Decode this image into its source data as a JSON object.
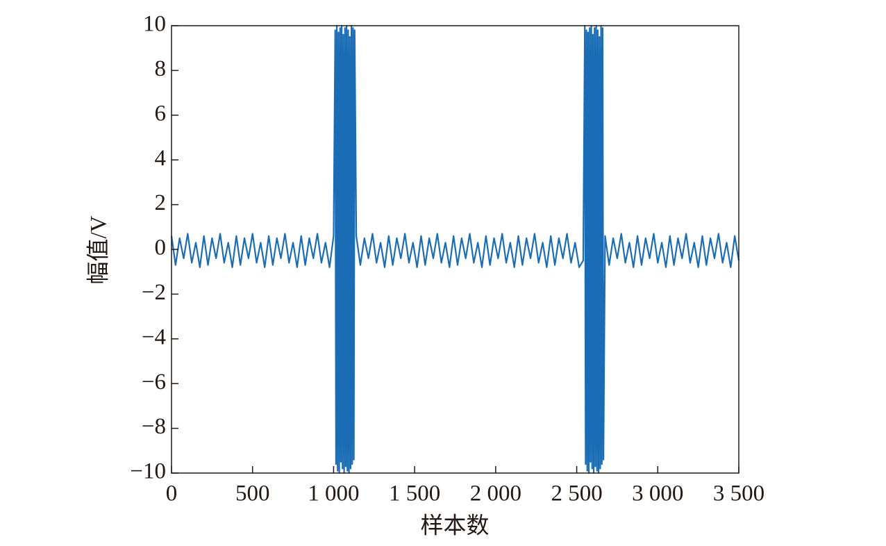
{
  "chart_data": {
    "type": "line",
    "xlabel": "样本数",
    "ylabel": "幅值/V",
    "color": "#1a6db5",
    "xlim": [
      0,
      3500
    ],
    "ylim": [
      -10,
      10
    ],
    "xticks": [
      0,
      500,
      {
        "value": 1000,
        "label": "1 000"
      },
      {
        "value": 1500,
        "label": "1 500"
      },
      {
        "value": 2000,
        "label": "2 000"
      },
      {
        "value": 2500,
        "label": "2 500"
      },
      {
        "value": 3000,
        "label": "3 000"
      },
      {
        "value": 3500,
        "label": "3 500"
      }
    ],
    "yticks": [
      {
        "value": -10,
        "label": "−10"
      },
      {
        "value": -8,
        "label": "−8"
      },
      {
        "value": -6,
        "label": "−6"
      },
      {
        "value": -4,
        "label": "−4"
      },
      {
        "value": -2,
        "label": "−2"
      },
      0,
      2,
      4,
      6,
      8,
      10
    ],
    "x": [
      0,
      25,
      50,
      75,
      100,
      125,
      150,
      175,
      200,
      225,
      250,
      275,
      300,
      325,
      350,
      375,
      400,
      425,
      450,
      475,
      500,
      525,
      550,
      575,
      600,
      625,
      650,
      675,
      700,
      725,
      750,
      775,
      800,
      825,
      850,
      875,
      900,
      925,
      950,
      975,
      1000,
      1010,
      1015,
      1020,
      1025,
      1030,
      1035,
      1040,
      1045,
      1050,
      1055,
      1060,
      1065,
      1070,
      1075,
      1080,
      1085,
      1090,
      1095,
      1100,
      1105,
      1110,
      1115,
      1120,
      1125,
      1130,
      1140,
      1165,
      1190,
      1215,
      1240,
      1265,
      1290,
      1315,
      1340,
      1365,
      1390,
      1415,
      1440,
      1465,
      1490,
      1515,
      1540,
      1565,
      1590,
      1615,
      1640,
      1665,
      1690,
      1715,
      1740,
      1765,
      1790,
      1815,
      1840,
      1865,
      1890,
      1915,
      1940,
      1965,
      1990,
      2015,
      2040,
      2065,
      2090,
      2115,
      2140,
      2165,
      2190,
      2215,
      2240,
      2265,
      2290,
      2315,
      2340,
      2365,
      2390,
      2415,
      2440,
      2465,
      2490,
      2515,
      2540,
      2550,
      2555,
      2560,
      2565,
      2570,
      2575,
      2580,
      2585,
      2590,
      2595,
      2600,
      2605,
      2610,
      2615,
      2620,
      2625,
      2630,
      2635,
      2640,
      2645,
      2650,
      2655,
      2660,
      2665,
      2675,
      2700,
      2725,
      2750,
      2775,
      2800,
      2825,
      2850,
      2875,
      2900,
      2925,
      2950,
      2975,
      3000,
      3025,
      3050,
      3075,
      3100,
      3125,
      3150,
      3175,
      3200,
      3225,
      3250,
      3275,
      3300,
      3325,
      3350,
      3375,
      3400,
      3425,
      3450,
      3475,
      3500
    ],
    "values": [
      0.6,
      -0.7,
      0.5,
      -0.4,
      0.7,
      -0.6,
      0.3,
      -0.8,
      0.6,
      -0.7,
      0.5,
      -0.4,
      0.7,
      -0.6,
      0.3,
      -0.8,
      0.6,
      -0.7,
      0.5,
      -0.4,
      0.7,
      -0.6,
      0.3,
      -0.8,
      0.6,
      -0.7,
      0.5,
      -0.4,
      0.7,
      -0.6,
      0.3,
      -0.8,
      0.6,
      -0.7,
      0.5,
      -0.4,
      0.7,
      -0.6,
      0.3,
      -0.8,
      0.6,
      9.8,
      -9.6,
      10,
      -9.9,
      9.7,
      -10,
      9.9,
      -9.5,
      10,
      -9.8,
      9.6,
      -10,
      9.9,
      -9.7,
      10,
      -9.9,
      9.8,
      -10,
      9.5,
      -9.8,
      10,
      -9.6,
      9.9,
      -9.4,
      9.8,
      0.6,
      -0.7,
      0.5,
      -0.4,
      0.7,
      -0.6,
      0.3,
      -0.8,
      0.6,
      -0.7,
      0.5,
      -0.4,
      0.7,
      -0.6,
      0.3,
      -0.8,
      0.6,
      -0.7,
      0.5,
      -0.4,
      0.7,
      -0.6,
      0.3,
      -0.8,
      0.6,
      -0.7,
      0.5,
      -0.4,
      0.7,
      -0.6,
      0.3,
      -0.8,
      0.6,
      -0.7,
      0.5,
      -0.4,
      0.7,
      -0.6,
      0.3,
      -0.8,
      0.6,
      -0.7,
      0.5,
      -0.4,
      0.7,
      -0.6,
      0.3,
      -0.8,
      0.6,
      -0.7,
      0.5,
      -0.4,
      0.7,
      -0.6,
      0.3,
      -0.8,
      -0.5,
      10,
      -9.6,
      9.8,
      -9.9,
      9.7,
      -10,
      9.9,
      -9.5,
      10,
      -9.8,
      9.6,
      -10,
      9.9,
      -9.7,
      10,
      -9.9,
      9.8,
      -10,
      9.5,
      -9.8,
      10,
      -9.6,
      9.9,
      -9.4,
      0.6,
      -0.7,
      0.5,
      -0.4,
      0.7,
      -0.6,
      0.3,
      -0.8,
      0.6,
      -0.7,
      0.5,
      -0.4,
      0.7,
      -0.6,
      0.3,
      -0.8,
      0.6,
      -0.7,
      0.5,
      -0.4,
      0.7,
      -0.6,
      0.3,
      -0.8,
      0.6,
      -0.7,
      0.5,
      -0.4,
      0.7,
      -0.6,
      0.3,
      -0.8,
      0.6,
      -0.5
    ]
  }
}
